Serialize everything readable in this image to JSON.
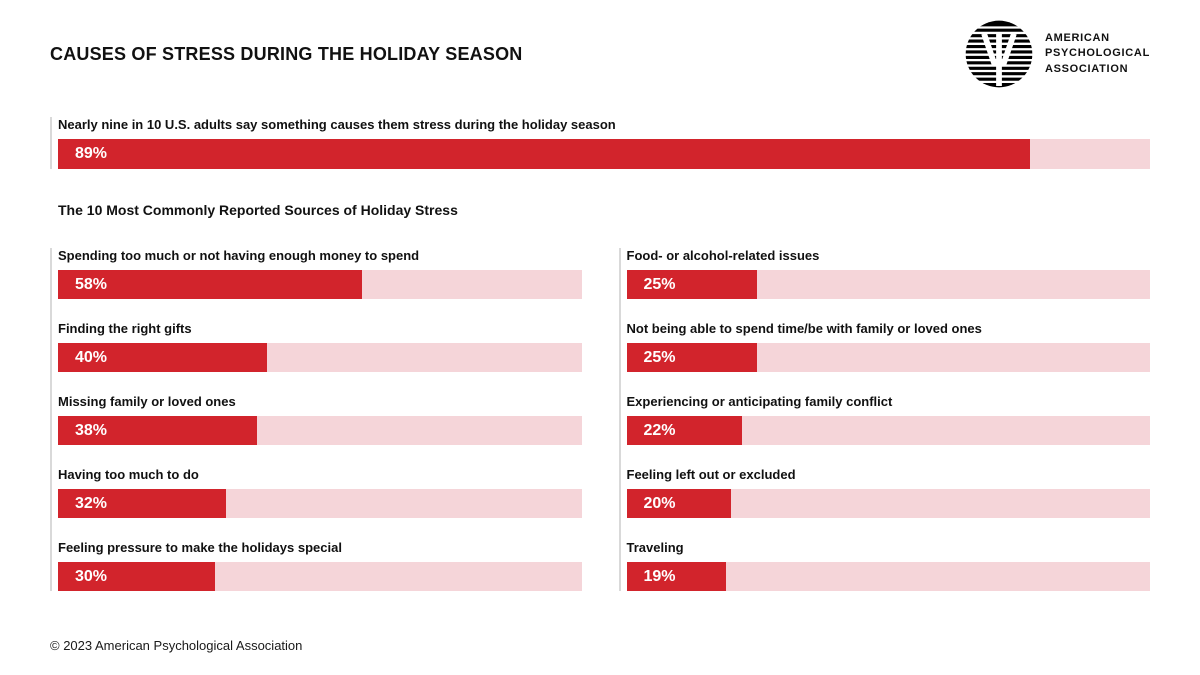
{
  "page": {
    "title": "CAUSES OF STRESS DURING THE HOLIDAY SEASON",
    "footer": "© 2023 American Psychological Association"
  },
  "logo": {
    "icon": "apa-psi-circle-logo",
    "lines": [
      "AMERICAN",
      "PSYCHOLOGICAL",
      "ASSOCIATION"
    ]
  },
  "colors": {
    "bar_red": "#d2242c",
    "track_pink": "#f5d5d9",
    "rule_gray": "#d9d9d9",
    "text_dark": "#111111"
  },
  "hero": {
    "label": "Nearly nine in 10 U.S. adults say something causes them stress during the holiday season",
    "value": 89,
    "value_label": "89%"
  },
  "subtitle": "The 10 Most Commonly Reported Sources of Holiday Stress",
  "columns": {
    "left": [
      {
        "label": "Spending too much or not having enough money to spend",
        "value": 58,
        "value_label": "58%"
      },
      {
        "label": "Finding the right gifts",
        "value": 40,
        "value_label": "40%"
      },
      {
        "label": "Missing family or loved ones",
        "value": 38,
        "value_label": "38%"
      },
      {
        "label": "Having too much to do",
        "value": 32,
        "value_label": "32%"
      },
      {
        "label": "Feeling pressure to make the holidays special",
        "value": 30,
        "value_label": "30%"
      }
    ],
    "right": [
      {
        "label": "Food- or alcohol-related issues",
        "value": 25,
        "value_label": "25%"
      },
      {
        "label": "Not being able to spend time/be with family or loved ones",
        "value": 25,
        "value_label": "25%"
      },
      {
        "label": "Experiencing or anticipating family conflict",
        "value": 22,
        "value_label": "22%"
      },
      {
        "label": "Feeling left out or excluded",
        "value": 20,
        "value_label": "20%"
      },
      {
        "label": "Traveling",
        "value": 19,
        "value_label": "19%"
      }
    ]
  },
  "chart_data": [
    {
      "type": "bar",
      "orientation": "horizontal",
      "title": "CAUSES OF STRESS DURING THE HOLIDAY SEASON",
      "categories": [
        "Nearly nine in 10 U.S. adults say something causes them stress during the holiday season"
      ],
      "values": [
        89
      ],
      "data_labels": [
        "89%"
      ],
      "unit": "%",
      "xlim": [
        0,
        100
      ],
      "grid": false,
      "legend": false
    },
    {
      "type": "bar",
      "orientation": "horizontal",
      "title": "The 10 Most Commonly Reported Sources of Holiday Stress",
      "categories": [
        "Spending too much or not having enough money to spend",
        "Finding the right gifts",
        "Missing family or loved ones",
        "Having too much to do",
        "Feeling pressure to make the holidays special",
        "Food- or alcohol-related issues",
        "Not being able to spend time/be with family or loved ones",
        "Experiencing or anticipating family conflict",
        "Feeling left out or excluded",
        "Traveling"
      ],
      "values": [
        58,
        40,
        38,
        32,
        30,
        25,
        25,
        22,
        20,
        19
      ],
      "data_labels": [
        "58%",
        "40%",
        "38%",
        "32%",
        "30%",
        "25%",
        "25%",
        "22%",
        "20%",
        "19%"
      ],
      "unit": "%",
      "xlim": [
        0,
        100
      ],
      "grid": false,
      "legend": false,
      "layout_hint": "two columns: first five categories left, last five right"
    }
  ]
}
